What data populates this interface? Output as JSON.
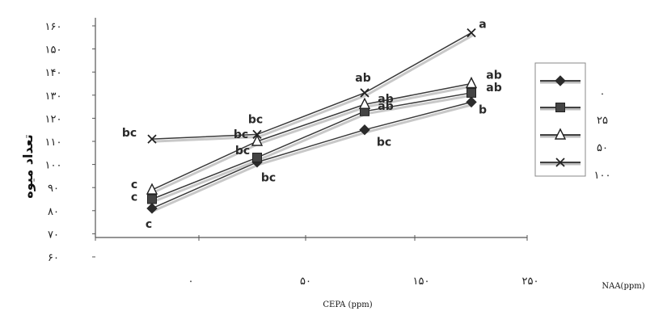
{
  "chart_data": {
    "type": "line",
    "ylabel": "تعداد میوه",
    "xlabel": "CEPA (ppm)",
    "legend_title": "NAA(ppm)",
    "ylim": [
      60,
      160
    ],
    "y_ticks": [
      "۶۰",
      "۷۰",
      "۸۰",
      "۹۰",
      "۱۰۰",
      "۱۱۰",
      "۱۲۰",
      "۱۳۰",
      "۱۴۰",
      "۱۵۰",
      "۱۶۰"
    ],
    "categories": [
      "۰",
      "۵۰",
      "۱۵۰",
      "۲۵۰"
    ],
    "legend_placement": "right",
    "grid": false,
    "series": [
      {
        "name": "۰",
        "marker": "diamond",
        "color": "#3a3a3a",
        "values": [
          81,
          101,
          115,
          127
        ],
        "labels": [
          "c",
          "bc",
          "bc",
          "b"
        ]
      },
      {
        "name": "۲۵",
        "marker": "square",
        "color": "#3a3a3a",
        "values": [
          85,
          103,
          123,
          131
        ],
        "labels": [
          "c",
          "bc",
          "ab",
          "ab"
        ]
      },
      {
        "name": "۵۰",
        "marker": "triangle",
        "color": "#3a3a3a",
        "values": [
          89,
          110,
          126,
          135
        ],
        "labels": [
          "c",
          "bc",
          "ab",
          "ab"
        ]
      },
      {
        "name": "۱۰۰",
        "marker": "x",
        "color": "#3a3a3a",
        "values": [
          111,
          113,
          131,
          157
        ],
        "labels": [
          "bc",
          "bc",
          "ab",
          "a"
        ]
      }
    ]
  }
}
